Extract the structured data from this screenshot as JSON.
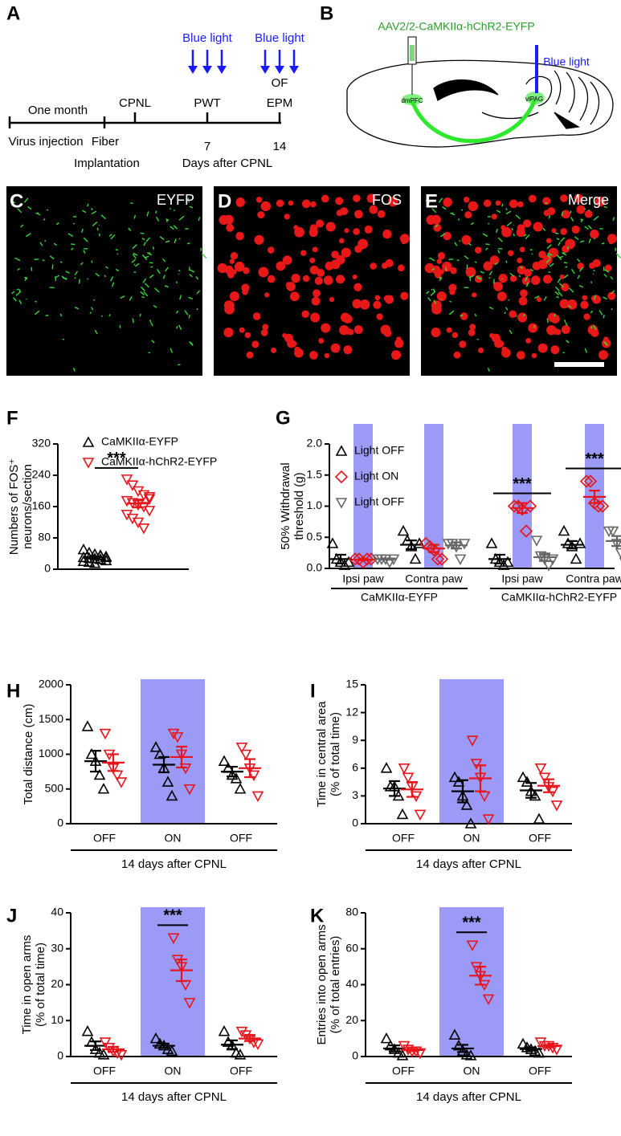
{
  "panel_letters": [
    "A",
    "B",
    "C",
    "D",
    "E",
    "F",
    "G",
    "H",
    "I",
    "J",
    "K"
  ],
  "timeline": {
    "blue_light_1": "Blue light",
    "blue_light_2": "Blue light",
    "one_month": "One month",
    "cpnl": "CPNL",
    "pwt": "PWT",
    "of": "OF",
    "epm": "EPM",
    "virus_injection": "Virus injection",
    "fiber": "Fiber",
    "implantation": "Implantation",
    "day_7": "7",
    "day_14": "14",
    "days_after": "Days after CPNL"
  },
  "schematic": {
    "vector": "AAV2/2-CaMKIIα-hChR2-EYFP",
    "light": "Blue light",
    "region_1": "dmPFC",
    "region_2": "vlPAG"
  },
  "micrographs": [
    "EYFP",
    "FOS",
    "Merge"
  ],
  "chart_data": [
    {
      "type": "dot",
      "ylabel": [
        "Numbers of FOS⁺",
        "neurons/section"
      ],
      "ylim": [
        0,
        320
      ],
      "yticks": [
        0,
        80,
        160,
        240,
        320
      ],
      "series": [
        {
          "name": "CaMKIIα-EYFP",
          "color": "#000000",
          "marker": "triangle-up",
          "points": [
            [
              50,
              42,
              38,
              35,
              32,
              30,
              28,
              27,
              25,
              22,
              20,
              18,
              15,
              35,
              30
            ]
          ],
          "mean": [
            30
          ],
          "sem": [
            2.5
          ]
        },
        {
          "name": "CaMKIIα-hChR2-EYFP",
          "color": "#e8141b",
          "marker": "triangle-down",
          "points": [
            [
              230,
              215,
              200,
              190,
              180,
              175,
              170,
              165,
              160,
              150,
              140,
              130,
              120,
              105,
              185
            ]
          ],
          "mean": [
            168
          ],
          "sem": [
            10
          ]
        }
      ],
      "significance": "***"
    },
    {
      "type": "dot",
      "ylabel": [
        "50% Withdrawal",
        "threshold (g)"
      ],
      "ylim": [
        0,
        2
      ],
      "yticks": [
        {
          "value": 0,
          "label": "0.0"
        },
        {
          "value": 0.5,
          "label": "0.5"
        },
        {
          "value": 1,
          "label": "1.0"
        },
        {
          "value": 1.5,
          "label": "1.5"
        },
        {
          "value": 2,
          "label": "2.0"
        }
      ],
      "categories": [
        "Ipsi paw",
        "Contra paw",
        "Ipsi paw",
        "Contra paw"
      ],
      "group_labels": [
        "CaMKIIα-EYFP",
        "CaMKIIα-hChR2-EYFP"
      ],
      "band_color": "#9b9bf7",
      "series": [
        {
          "name": "Light OFF",
          "color": "#000000",
          "marker": "triangle-up",
          "points": [
            [
              0.4,
              0.15,
              0.1,
              0.05,
              0.1
            ],
            [
              0.6,
              0.45,
              0.35,
              0.15,
              0.4
            ],
            [
              0.4,
              0.15,
              0.1,
              0.05,
              0.1
            ],
            [
              0.6,
              0.4,
              0.35,
              0.15,
              0.4
            ]
          ],
          "mean": [
            0.15,
            0.38,
            0.15,
            0.38
          ],
          "sem": [
            0.07,
            0.07,
            0.07,
            0.06
          ]
        },
        {
          "name": "Light ON",
          "color": "#e8141b",
          "marker": "diamond",
          "band": true,
          "points": [
            [
              0.15,
              0.15,
              0.1,
              0.15,
              0.15
            ],
            [
              0.4,
              0.35,
              0.3,
              0.15,
              0.15
            ],
            [
              1.0,
              1.0,
              0.95,
              0.6,
              1.0
            ],
            [
              1.4,
              1.4,
              1.05,
              1.0,
              1.0
            ]
          ],
          "mean": [
            0.14,
            0.32,
            0.97,
            1.15
          ],
          "sem": [
            0.01,
            0.06,
            0.08,
            0.1
          ]
        },
        {
          "name": "Light OFF",
          "color": "#666666",
          "marker": "triangle-down",
          "points": [
            [
              0.15,
              0.15,
              0.15,
              0.1,
              0.15
            ],
            [
              0.4,
              0.4,
              0.35,
              0.15,
              0.4
            ],
            [
              0.45,
              0.2,
              0.15,
              0.05,
              0.15
            ],
            [
              0.6,
              0.6,
              0.4,
              0.25,
              0.1
            ]
          ],
          "mean": [
            0.15,
            0.37,
            0.18,
            0.44
          ],
          "sem": [
            0.01,
            0.05,
            0.06,
            0.08
          ]
        }
      ],
      "significance": [
        null,
        null,
        "***",
        "***"
      ]
    },
    {
      "type": "dot",
      "ylabel": [
        "Total distance (cm)"
      ],
      "ylim": [
        0,
        2000
      ],
      "yticks": [
        0,
        500,
        1000,
        1500,
        2000
      ],
      "categories": [
        "OFF",
        "ON",
        "OFF"
      ],
      "xlabel": "14 days after CPNL",
      "band": [
        false,
        true,
        false
      ],
      "band_color": "#9b9bf7",
      "series": [
        {
          "color": "#000000",
          "marker": "triangle-up",
          "points": [
            [
              1400,
              1000,
              900,
              700,
              500
            ],
            [
              1100,
              1000,
              800,
              600,
              400
            ],
            [
              900,
              800,
              700,
              650,
              500
            ]
          ],
          "mean": [
            900,
            850,
            750
          ],
          "sem": [
            150,
            110,
            70
          ]
        },
        {
          "color": "#e8141b",
          "marker": "triangle-down",
          "points": [
            [
              1300,
              1000,
              800,
              700,
              600
            ],
            [
              1300,
              1250,
              1000,
              800,
              500
            ],
            [
              1100,
              1000,
              800,
              700,
              400
            ]
          ],
          "mean": [
            880,
            960,
            800
          ],
          "sem": [
            120,
            150,
            130
          ]
        }
      ],
      "significance": [
        null,
        null,
        null
      ]
    },
    {
      "type": "dot",
      "ylabel": [
        "Time in central area",
        "(% of total time)"
      ],
      "ylim": [
        0,
        15
      ],
      "yticks": [
        0,
        3,
        6,
        9,
        12,
        15
      ],
      "categories": [
        "OFF",
        "ON",
        "OFF"
      ],
      "xlabel": "14 days after CPNL",
      "band": [
        false,
        true,
        false
      ],
      "band_color": "#9b9bf7",
      "series": [
        {
          "color": "#000000",
          "marker": "triangle-up",
          "points": [
            [
              6,
              4,
              4,
              3,
              1
            ],
            [
              5,
              4.5,
              3,
              2,
              0
            ],
            [
              5,
              4.5,
              3.5,
              3,
              0.5
            ]
          ],
          "mean": [
            3.8,
            3.5,
            3.6
          ],
          "sem": [
            0.8,
            1.2,
            0.8
          ]
        },
        {
          "color": "#e8141b",
          "marker": "triangle-down",
          "points": [
            [
              6,
              5,
              4,
              3,
              1
            ],
            [
              9,
              6.5,
              5,
              3,
              0.5
            ],
            [
              6,
              5,
              4,
              3.5,
              2
            ]
          ],
          "mean": [
            3.7,
            4.9,
            4.1
          ],
          "sem": [
            0.8,
            1.4,
            0.7
          ]
        }
      ],
      "significance": [
        null,
        null,
        null
      ]
    },
    {
      "type": "dot",
      "ylabel": [
        "Time in open arms",
        "(% of total time)"
      ],
      "ylim": [
        0,
        40
      ],
      "yticks": [
        0,
        10,
        20,
        30,
        40
      ],
      "categories": [
        "OFF",
        "ON",
        "OFF"
      ],
      "xlabel": "14 days after CPNL",
      "band": [
        false,
        true,
        false
      ],
      "band_color": "#9b9bf7",
      "series": [
        {
          "color": "#000000",
          "marker": "triangle-up",
          "points": [
            [
              7,
              4,
              2,
              1,
              0.5
            ],
            [
              5,
              3.5,
              3,
              2,
              1.5
            ],
            [
              7,
              4,
              3,
              1,
              0.5
            ]
          ],
          "mean": [
            3,
            3,
            3.3
          ],
          "sem": [
            1.2,
            0.6,
            1.2
          ]
        },
        {
          "color": "#e8141b",
          "marker": "triangle-down",
          "points": [
            [
              4,
              2.5,
              1.5,
              1,
              0.5
            ],
            [
              33,
              27,
              25,
              20,
              15
            ],
            [
              7,
              6,
              5,
              4,
              3.5
            ]
          ],
          "mean": [
            2,
            24,
            5
          ],
          "sem": [
            0.7,
            3,
            0.7
          ]
        }
      ],
      "significance": [
        null,
        "***",
        null
      ]
    },
    {
      "type": "dot",
      "ylabel": [
        "Entries into open arms",
        "(% of total entries)"
      ],
      "ylim": [
        0,
        80
      ],
      "yticks": [
        0,
        20,
        40,
        60,
        80
      ],
      "categories": [
        "OFF",
        "ON",
        "OFF"
      ],
      "xlabel": "14 days after CPNL",
      "band": [
        false,
        true,
        false
      ],
      "band_color": "#9b9bf7",
      "series": [
        {
          "color": "#000000",
          "marker": "triangle-up",
          "points": [
            [
              10,
              6,
              4,
              2,
              0.5
            ],
            [
              12,
              6,
              3,
              1,
              0.5
            ],
            [
              7,
              5,
              4,
              3,
              2
            ]
          ],
          "mean": [
            4.5,
            4.5,
            4.2
          ],
          "sem": [
            1.7,
            2,
            0.9
          ]
        },
        {
          "color": "#e8141b",
          "marker": "triangle-down",
          "points": [
            [
              6,
              4,
              3,
              3,
              2
            ],
            [
              62,
              50,
              45,
              40,
              32
            ],
            [
              8,
              6,
              6,
              5,
              4
            ]
          ],
          "mean": [
            3.6,
            45,
            5.8
          ],
          "sem": [
            0.7,
            5,
            0.7
          ]
        }
      ],
      "significance": [
        null,
        "***",
        null
      ]
    }
  ]
}
